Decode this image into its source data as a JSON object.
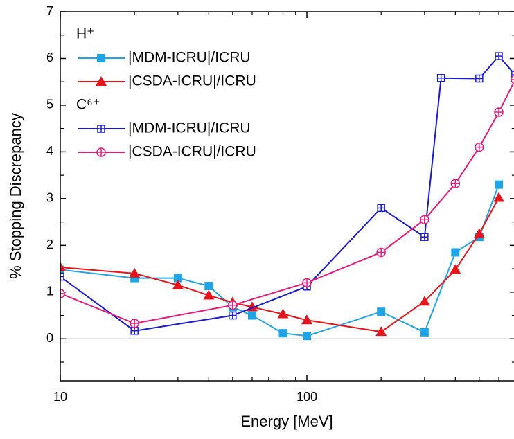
{
  "chart_data": {
    "type": "line",
    "xlabel": "Energy [MeV]",
    "ylabel": "% Stopping Discrepancy",
    "xscale": "log",
    "xlim": [
      10,
      700
    ],
    "xticks": [
      10,
      100
    ],
    "xminor_ticks": [
      20,
      30,
      40,
      50,
      60,
      70,
      80,
      90,
      200,
      300,
      400,
      500,
      600,
      700
    ],
    "ylim": [
      -0.9,
      7
    ],
    "yticks": [
      0,
      1,
      2,
      3,
      4,
      5,
      6,
      7
    ],
    "yminor_ticks": [
      -0.5,
      0.5,
      1.5,
      2.5,
      3.5,
      4.5,
      5.5,
      6.5
    ],
    "zero_line": true,
    "legend_groups": [
      {
        "title": "H⁺",
        "series": [
          0,
          1
        ]
      },
      {
        "title": "C⁶⁺",
        "series": [
          2,
          3
        ]
      }
    ],
    "series": [
      {
        "name": "|MDM-ICRU|/ICRU",
        "color": "#1fa5e6",
        "marker": "square",
        "x": [
          10,
          20,
          30,
          40,
          50,
          60,
          80,
          100,
          200,
          300,
          400,
          500,
          600
        ],
        "values": [
          1.48,
          1.3,
          1.3,
          1.13,
          0.68,
          0.5,
          0.12,
          0.06,
          0.58,
          0.14,
          1.85,
          2.18,
          3.3
        ]
      },
      {
        "name": "|CSDA-ICRU|/ICRU",
        "color": "#e8141c",
        "marker": "triangle",
        "x": [
          10,
          20,
          30,
          40,
          50,
          60,
          80,
          100,
          200,
          300,
          400,
          500,
          600
        ],
        "values": [
          1.53,
          1.4,
          1.15,
          0.93,
          0.78,
          0.68,
          0.53,
          0.4,
          0.15,
          0.8,
          1.48,
          2.25,
          3.02
        ]
      },
      {
        "name": "|MDM-ICRU|/ICRU",
        "color": "#1a1ad0",
        "marker": "square-plus",
        "x": [
          10,
          20,
          50,
          100,
          200,
          300,
          350,
          500,
          600,
          700
        ],
        "values": [
          1.33,
          0.17,
          0.5,
          1.12,
          2.8,
          2.18,
          5.58,
          5.57,
          6.05,
          5.65
        ]
      },
      {
        "name": "|CSDA-ICRU|/ICRU",
        "color": "#e8197a",
        "marker": "circle-plus",
        "x": [
          10,
          20,
          50,
          100,
          200,
          300,
          400,
          500,
          600,
          700
        ],
        "values": [
          0.97,
          0.33,
          0.72,
          1.2,
          1.85,
          2.55,
          3.32,
          4.1,
          4.85,
          5.55
        ]
      }
    ]
  }
}
